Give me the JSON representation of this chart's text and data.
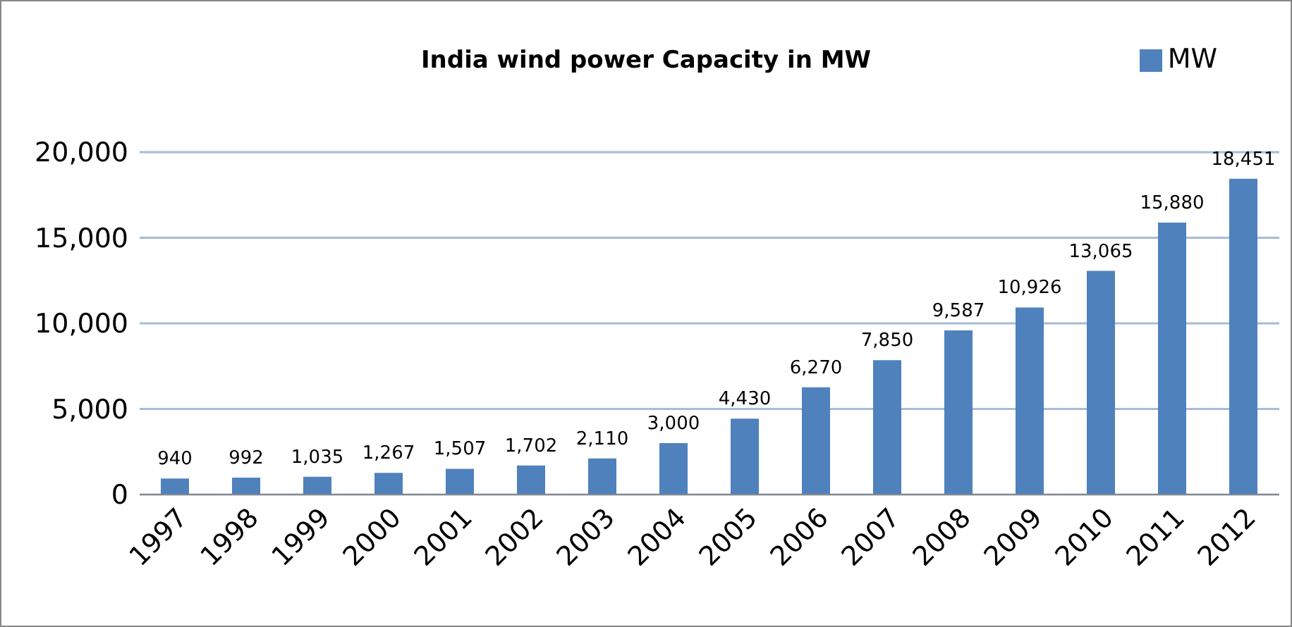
{
  "chart_data": {
    "type": "bar",
    "title": "India wind power Capacity in MW",
    "categories": [
      "1997",
      "1998",
      "1999",
      "2000",
      "2001",
      "2002",
      "2003",
      "2004",
      "2005",
      "2006",
      "2007",
      "2008",
      "2009",
      "2010",
      "2011",
      "2012"
    ],
    "series": [
      {
        "name": "MW",
        "color": "#4f81bd",
        "values": [
          940,
          992,
          1035,
          1267,
          1507,
          1702,
          2110,
          3000,
          4430,
          6270,
          7850,
          9587,
          10926,
          13065,
          15880,
          18451
        ],
        "value_labels": [
          "940",
          "992",
          "1,035",
          "1,267",
          "1,507",
          "1,702",
          "2,110",
          "3,000",
          "4,430",
          "6,270",
          "7,850",
          "9,587",
          "10,926",
          "13,065",
          "15,880",
          "18,451"
        ]
      }
    ],
    "ylim": [
      0,
      20000
    ],
    "yticks": [
      {
        "value": 0,
        "label": "0"
      },
      {
        "value": 5000,
        "label": "5,000"
      },
      {
        "value": 10000,
        "label": "10,000"
      },
      {
        "value": 15000,
        "label": "15,000"
      },
      {
        "value": 20000,
        "label": "20,000"
      }
    ],
    "grid": "y",
    "legend": "top right"
  }
}
